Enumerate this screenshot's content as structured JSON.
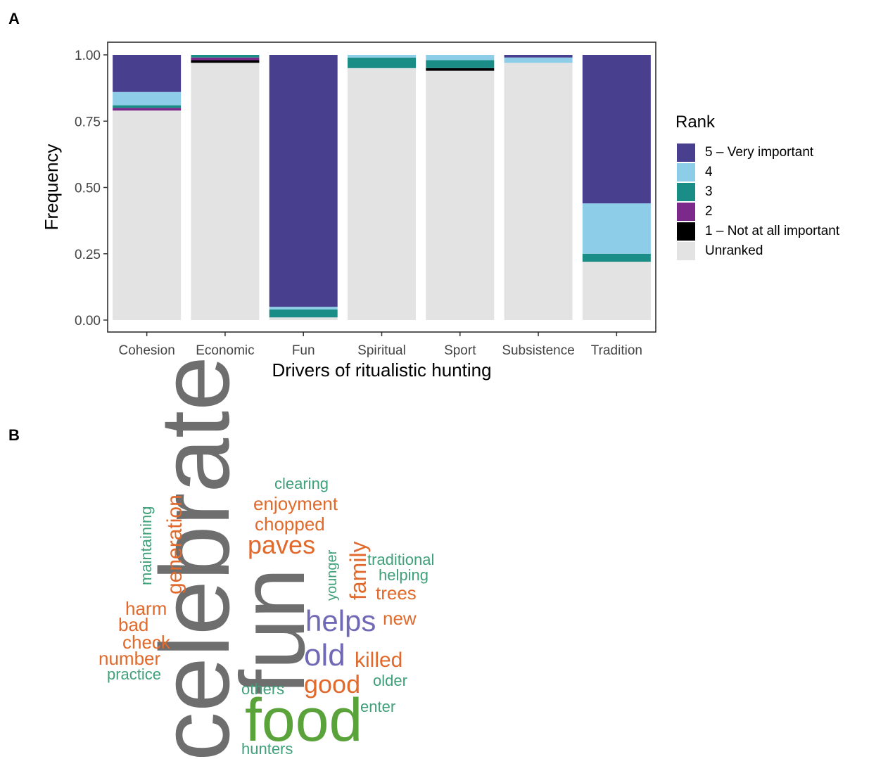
{
  "panels": {
    "a_label": "A",
    "b_label": "B"
  },
  "chart_data": {
    "type": "bar",
    "stacked": true,
    "xlabel": "Drivers of ritualistic hunting",
    "ylabel": "Frequency",
    "ylim": [
      0,
      1
    ],
    "yticks": [
      "0.00",
      "0.25",
      "0.50",
      "0.75",
      "1.00"
    ],
    "categories": [
      "Cohesion",
      "Economic",
      "Fun",
      "Spiritual",
      "Sport",
      "Subsistence",
      "Tradition"
    ],
    "legend_title": "Rank",
    "legend_position": "right",
    "grid": false,
    "series": [
      {
        "name": "Unranked",
        "color": "#e3e3e3",
        "values": [
          0.79,
          0.97,
          0.01,
          0.95,
          0.94,
          0.97,
          0.22
        ]
      },
      {
        "name": "1 – Not at all important",
        "color": "#000000",
        "values": [
          0.0,
          0.01,
          0.0,
          0.0,
          0.01,
          0.0,
          0.0
        ]
      },
      {
        "name": "2",
        "color": "#7b2a8c",
        "values": [
          0.01,
          0.01,
          0.0,
          0.0,
          0.0,
          0.0,
          0.0
        ]
      },
      {
        "name": "3",
        "color": "#1a8e86",
        "values": [
          0.01,
          0.01,
          0.03,
          0.04,
          0.03,
          0.0,
          0.03
        ]
      },
      {
        "name": "4",
        "color": "#8ecde8",
        "values": [
          0.05,
          0.0,
          0.01,
          0.01,
          0.02,
          0.02,
          0.19
        ]
      },
      {
        "name": "5 – Very important",
        "color": "#48408f",
        "values": [
          0.14,
          0.0,
          0.95,
          0.0,
          0.0,
          0.01,
          0.56
        ]
      }
    ],
    "legend_order": [
      "5 – Very important",
      "4",
      "3",
      "2",
      "1 – Not at all important",
      "Unranked"
    ]
  },
  "word_cloud": {
    "words": [
      {
        "text": "celebrate",
        "color": "#6e6e6e"
      },
      {
        "text": "fun",
        "color": "#6e6e6e"
      },
      {
        "text": "food",
        "color": "#5aa33a"
      },
      {
        "text": "helps",
        "color": "#7069b5"
      },
      {
        "text": "old",
        "color": "#7069b5"
      },
      {
        "text": "generation",
        "color": "#e0692b"
      },
      {
        "text": "maintaining",
        "color": "#3fa07a"
      },
      {
        "text": "clearing",
        "color": "#3fa07a"
      },
      {
        "text": "enjoyment",
        "color": "#e0692b"
      },
      {
        "text": "chopped",
        "color": "#e0692b"
      },
      {
        "text": "paves",
        "color": "#e0692b"
      },
      {
        "text": "younger",
        "color": "#3fa07a"
      },
      {
        "text": "family",
        "color": "#e0692b"
      },
      {
        "text": "traditional",
        "color": "#3fa07a"
      },
      {
        "text": "helping",
        "color": "#3fa07a"
      },
      {
        "text": "trees",
        "color": "#e0692b"
      },
      {
        "text": "harm",
        "color": "#e0692b"
      },
      {
        "text": "bad",
        "color": "#e0692b"
      },
      {
        "text": "check",
        "color": "#e0692b"
      },
      {
        "text": "number",
        "color": "#e0692b"
      },
      {
        "text": "practice",
        "color": "#3fa07a"
      },
      {
        "text": "new",
        "color": "#e0692b"
      },
      {
        "text": "killed",
        "color": "#e0692b"
      },
      {
        "text": "good",
        "color": "#e0692b"
      },
      {
        "text": "older",
        "color": "#3fa07a"
      },
      {
        "text": "others",
        "color": "#3fa07a"
      },
      {
        "text": "enter",
        "color": "#3fa07a"
      },
      {
        "text": "hunters",
        "color": "#3fa07a"
      }
    ]
  }
}
